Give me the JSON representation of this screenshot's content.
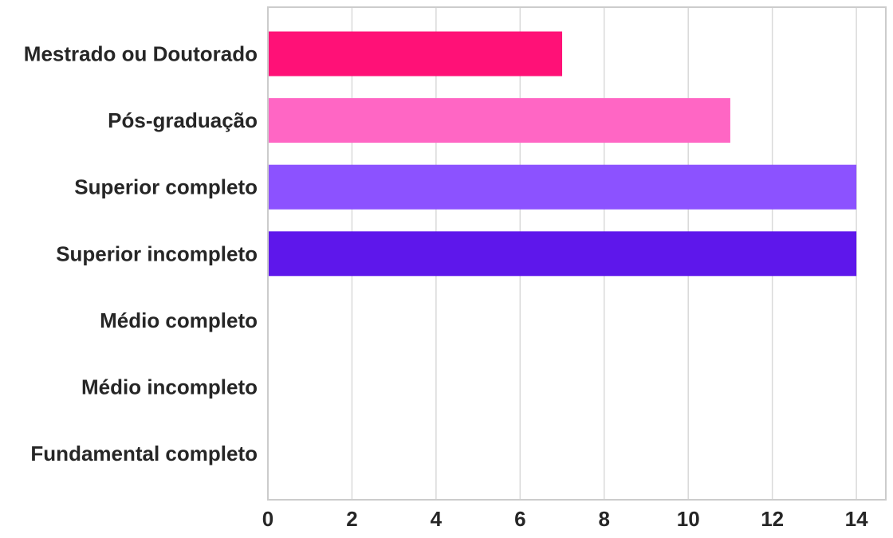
{
  "chart_data": {
    "type": "bar",
    "orientation": "horizontal",
    "categories": [
      "Mestrado ou Doutorado",
      "Pós-graduação",
      "Superior completo",
      "Superior incompleto",
      "Médio completo",
      "Médio incompleto",
      "Fundamental completo"
    ],
    "values": [
      7,
      11,
      14,
      14,
      0,
      0,
      0
    ],
    "colors": [
      "#ff1177",
      "#ff66c4",
      "#8c52ff",
      "#5e17eb",
      "#5e17eb",
      "#5e17eb",
      "#5e17eb"
    ],
    "xlim": [
      0,
      14.7
    ],
    "xticks": [
      "0",
      "2",
      "4",
      "6",
      "8",
      "10",
      "12",
      "14"
    ],
    "xtick_values": [
      0,
      2,
      4,
      6,
      8,
      10,
      12,
      14
    ],
    "grid": "vertical",
    "title": "",
    "xlabel": "",
    "ylabel": ""
  }
}
